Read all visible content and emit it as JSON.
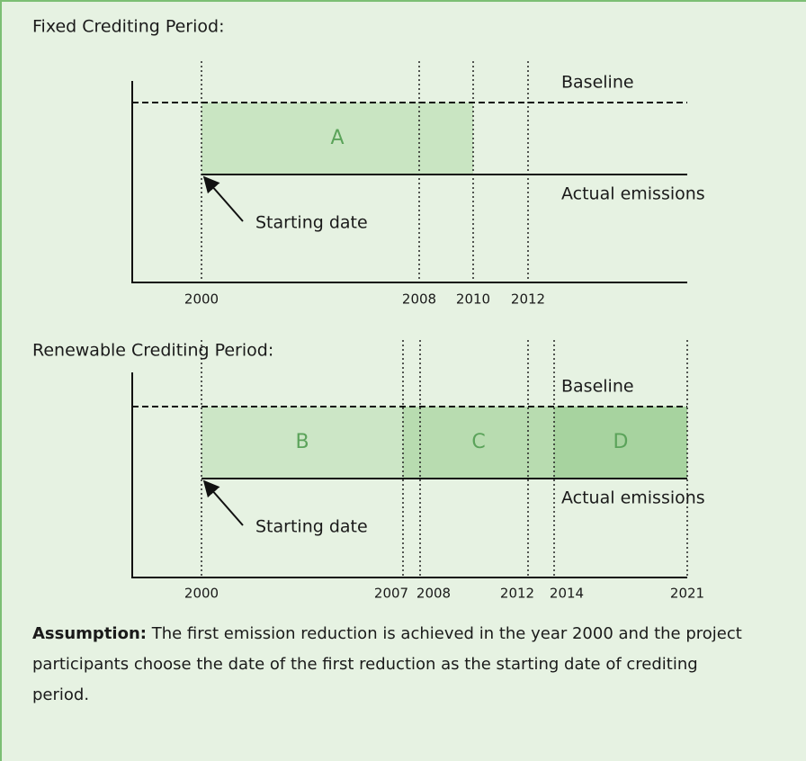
{
  "sections": [
    {
      "title": "Fixed Crediting Period:",
      "baseline": "Baseline",
      "actual": "Actual emissions",
      "start": "Starting date",
      "regions": [
        "A"
      ],
      "years": [
        "2000",
        "2008",
        "2010",
        "2012"
      ]
    },
    {
      "title": "Renewable Crediting Period:",
      "baseline": "Baseline",
      "actual": "Actual emissions",
      "start": "Starting date",
      "regions": [
        "B",
        "C",
        "D"
      ],
      "years": [
        "2000",
        "2007",
        "2008",
        "2012",
        "2014",
        "2021"
      ]
    }
  ],
  "note": {
    "label": "Assumption:",
    "text": "The first emission reduction is achieved in the year 2000 and the project participants choose the date of the first reduction as the starting date of crediting period."
  }
}
